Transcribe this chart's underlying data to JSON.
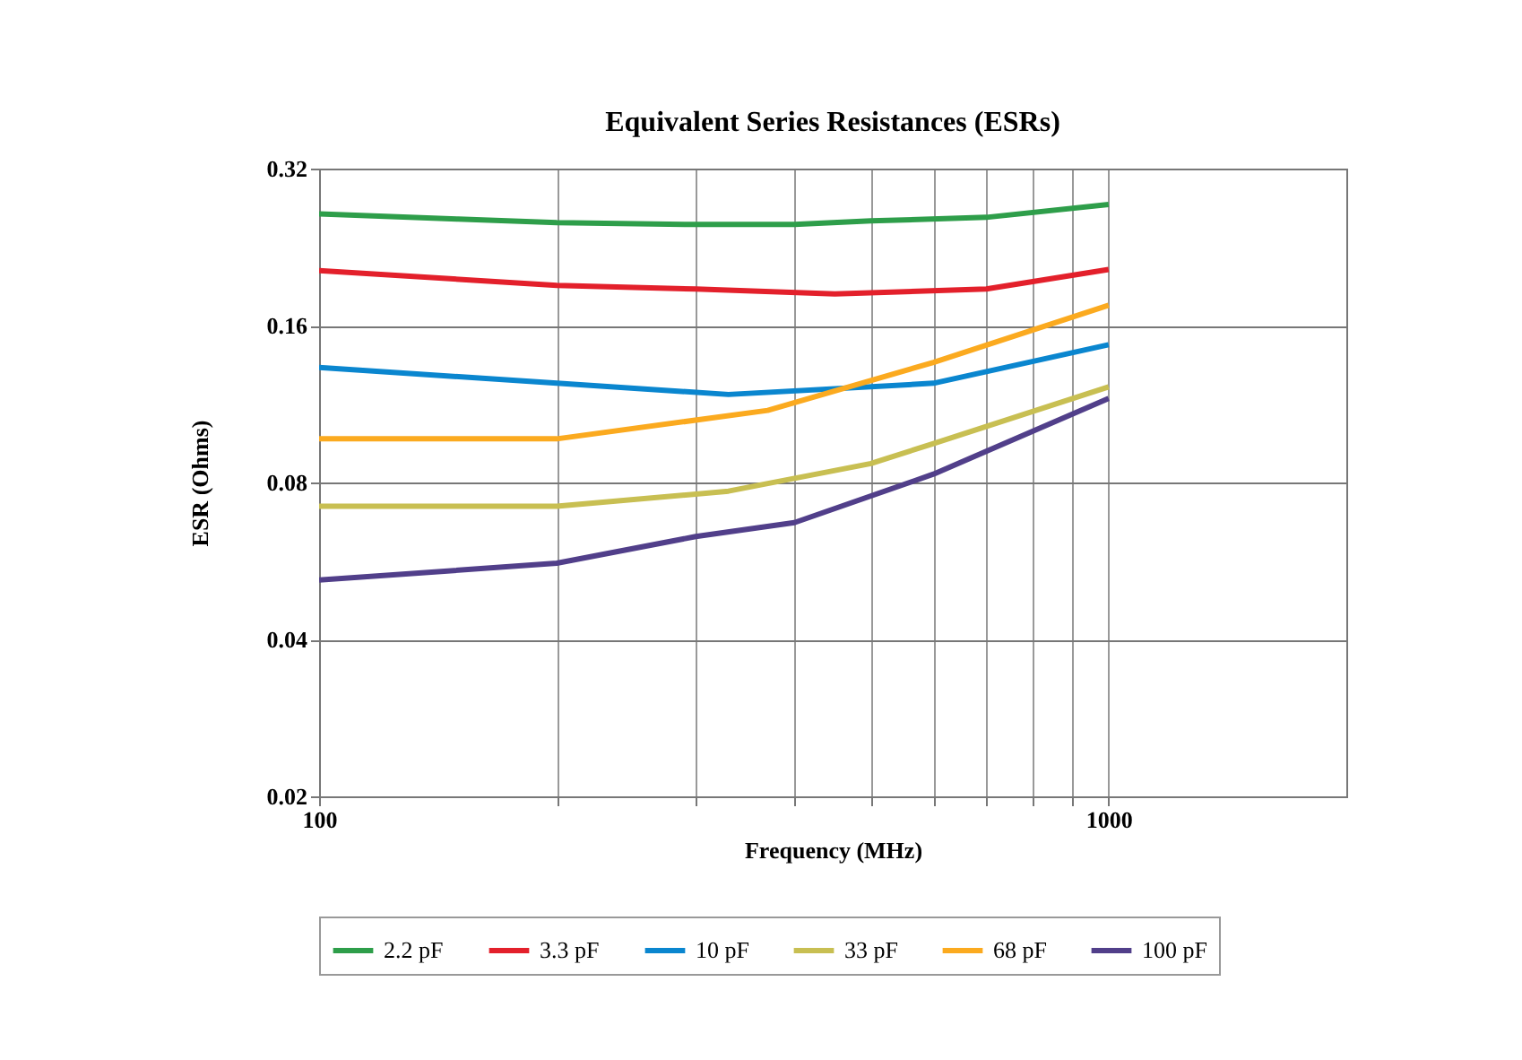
{
  "chart_data": {
    "type": "line",
    "title": "Equivalent Series Resistances (ESRs)",
    "xlabel": "Frequency (MHz)",
    "ylabel": "ESR (Ohms)",
    "log": "xy",
    "grid": true,
    "legend": "bottom",
    "xlim": [
      100,
      2000
    ],
    "xticks": [
      100,
      {
        "value": 200,
        "label": null
      },
      {
        "value": 300,
        "label": null
      },
      {
        "value": 400,
        "label": null
      },
      {
        "value": 500,
        "label": null
      },
      {
        "value": 600,
        "label": null
      },
      {
        "value": 700,
        "label": null
      },
      {
        "value": 800,
        "label": null
      },
      {
        "value": 900,
        "label": null
      },
      1000
    ],
    "ylim": [
      0.02,
      0.32
    ],
    "yticks": [
      0.02,
      0.04,
      0.08,
      0.16,
      0.32
    ],
    "series": [
      {
        "name": "2.2 pF",
        "color": "#2e9e4a",
        "x": [
          100,
          150,
          200,
          300,
          400,
          500,
          700,
          1000
        ],
        "values": [
          0.262,
          0.256,
          0.252,
          0.25,
          0.25,
          0.254,
          0.258,
          0.273
        ]
      },
      {
        "name": "3.3 pF",
        "color": "#e3202b",
        "x": [
          100,
          200,
          300,
          450,
          700,
          1000
        ],
        "values": [
          0.204,
          0.191,
          0.188,
          0.184,
          0.188,
          0.205
        ]
      },
      {
        "name": "10 pF",
        "color": "#0a86cf",
        "x": [
          100,
          200,
          330,
          600,
          1000
        ],
        "values": [
          0.133,
          0.124,
          0.118,
          0.124,
          0.147
        ]
      },
      {
        "name": "33 pF",
        "color": "#c8bf52",
        "x": [
          100,
          200,
          330,
          500,
          600,
          1000
        ],
        "values": [
          0.072,
          0.072,
          0.077,
          0.087,
          0.095,
          0.122
        ]
      },
      {
        "name": "68 pF",
        "color": "#fbaa1f",
        "x": [
          100,
          200,
          370,
          600,
          1000
        ],
        "values": [
          0.097,
          0.097,
          0.11,
          0.136,
          0.175
        ]
      },
      {
        "name": "100 pF",
        "color": "#513f8a",
        "x": [
          100,
          200,
          300,
          400,
          600,
          1000
        ],
        "values": [
          0.052,
          0.056,
          0.063,
          0.067,
          0.083,
          0.116
        ]
      }
    ]
  }
}
